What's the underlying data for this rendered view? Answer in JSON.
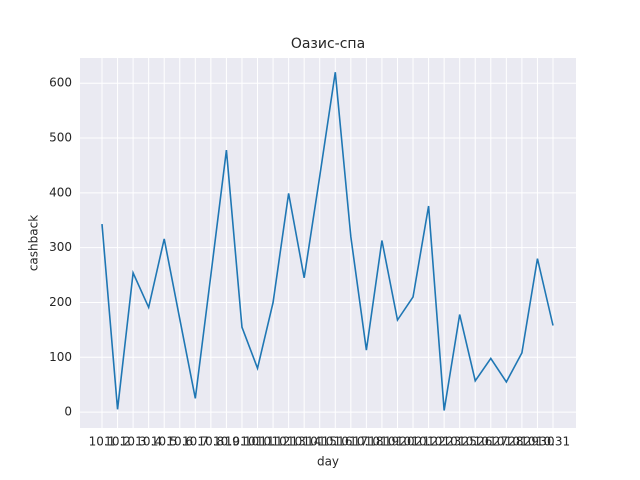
{
  "chart_data": {
    "type": "line",
    "title": "Оазис-спа",
    "x_label": "day",
    "y_label": "cashback",
    "categories": [
      "10.1",
      "10.2",
      "10.3",
      "10.4",
      "10.5",
      "10.6",
      "10.7",
      "10.8",
      "10.9",
      "10.10",
      "10.11",
      "10.12",
      "10.13",
      "10.14",
      "10.15",
      "10.16",
      "10.17",
      "10.18",
      "10.19",
      "10.20",
      "10.21",
      "10.22",
      "10.23",
      "10.25",
      "10.26",
      "10.27",
      "10.28",
      "10.29",
      "10.30",
      "10.31"
    ],
    "series": [
      {
        "name": "cashback",
        "color": "#1f77b4",
        "values": [
          343,
          5,
          254,
          191,
          316,
          170,
          25,
          250,
          478,
          155,
          80,
          200,
          399,
          245,
          430,
          620,
          320,
          113,
          313,
          168,
          210,
          376,
          3,
          178,
          57,
          98,
          55,
          108,
          280,
          158
        ]
      }
    ],
    "ylim": [
      -29,
      646
    ],
    "yticks": [
      0,
      100,
      200,
      300,
      400,
      500,
      600
    ],
    "grid": true
  }
}
